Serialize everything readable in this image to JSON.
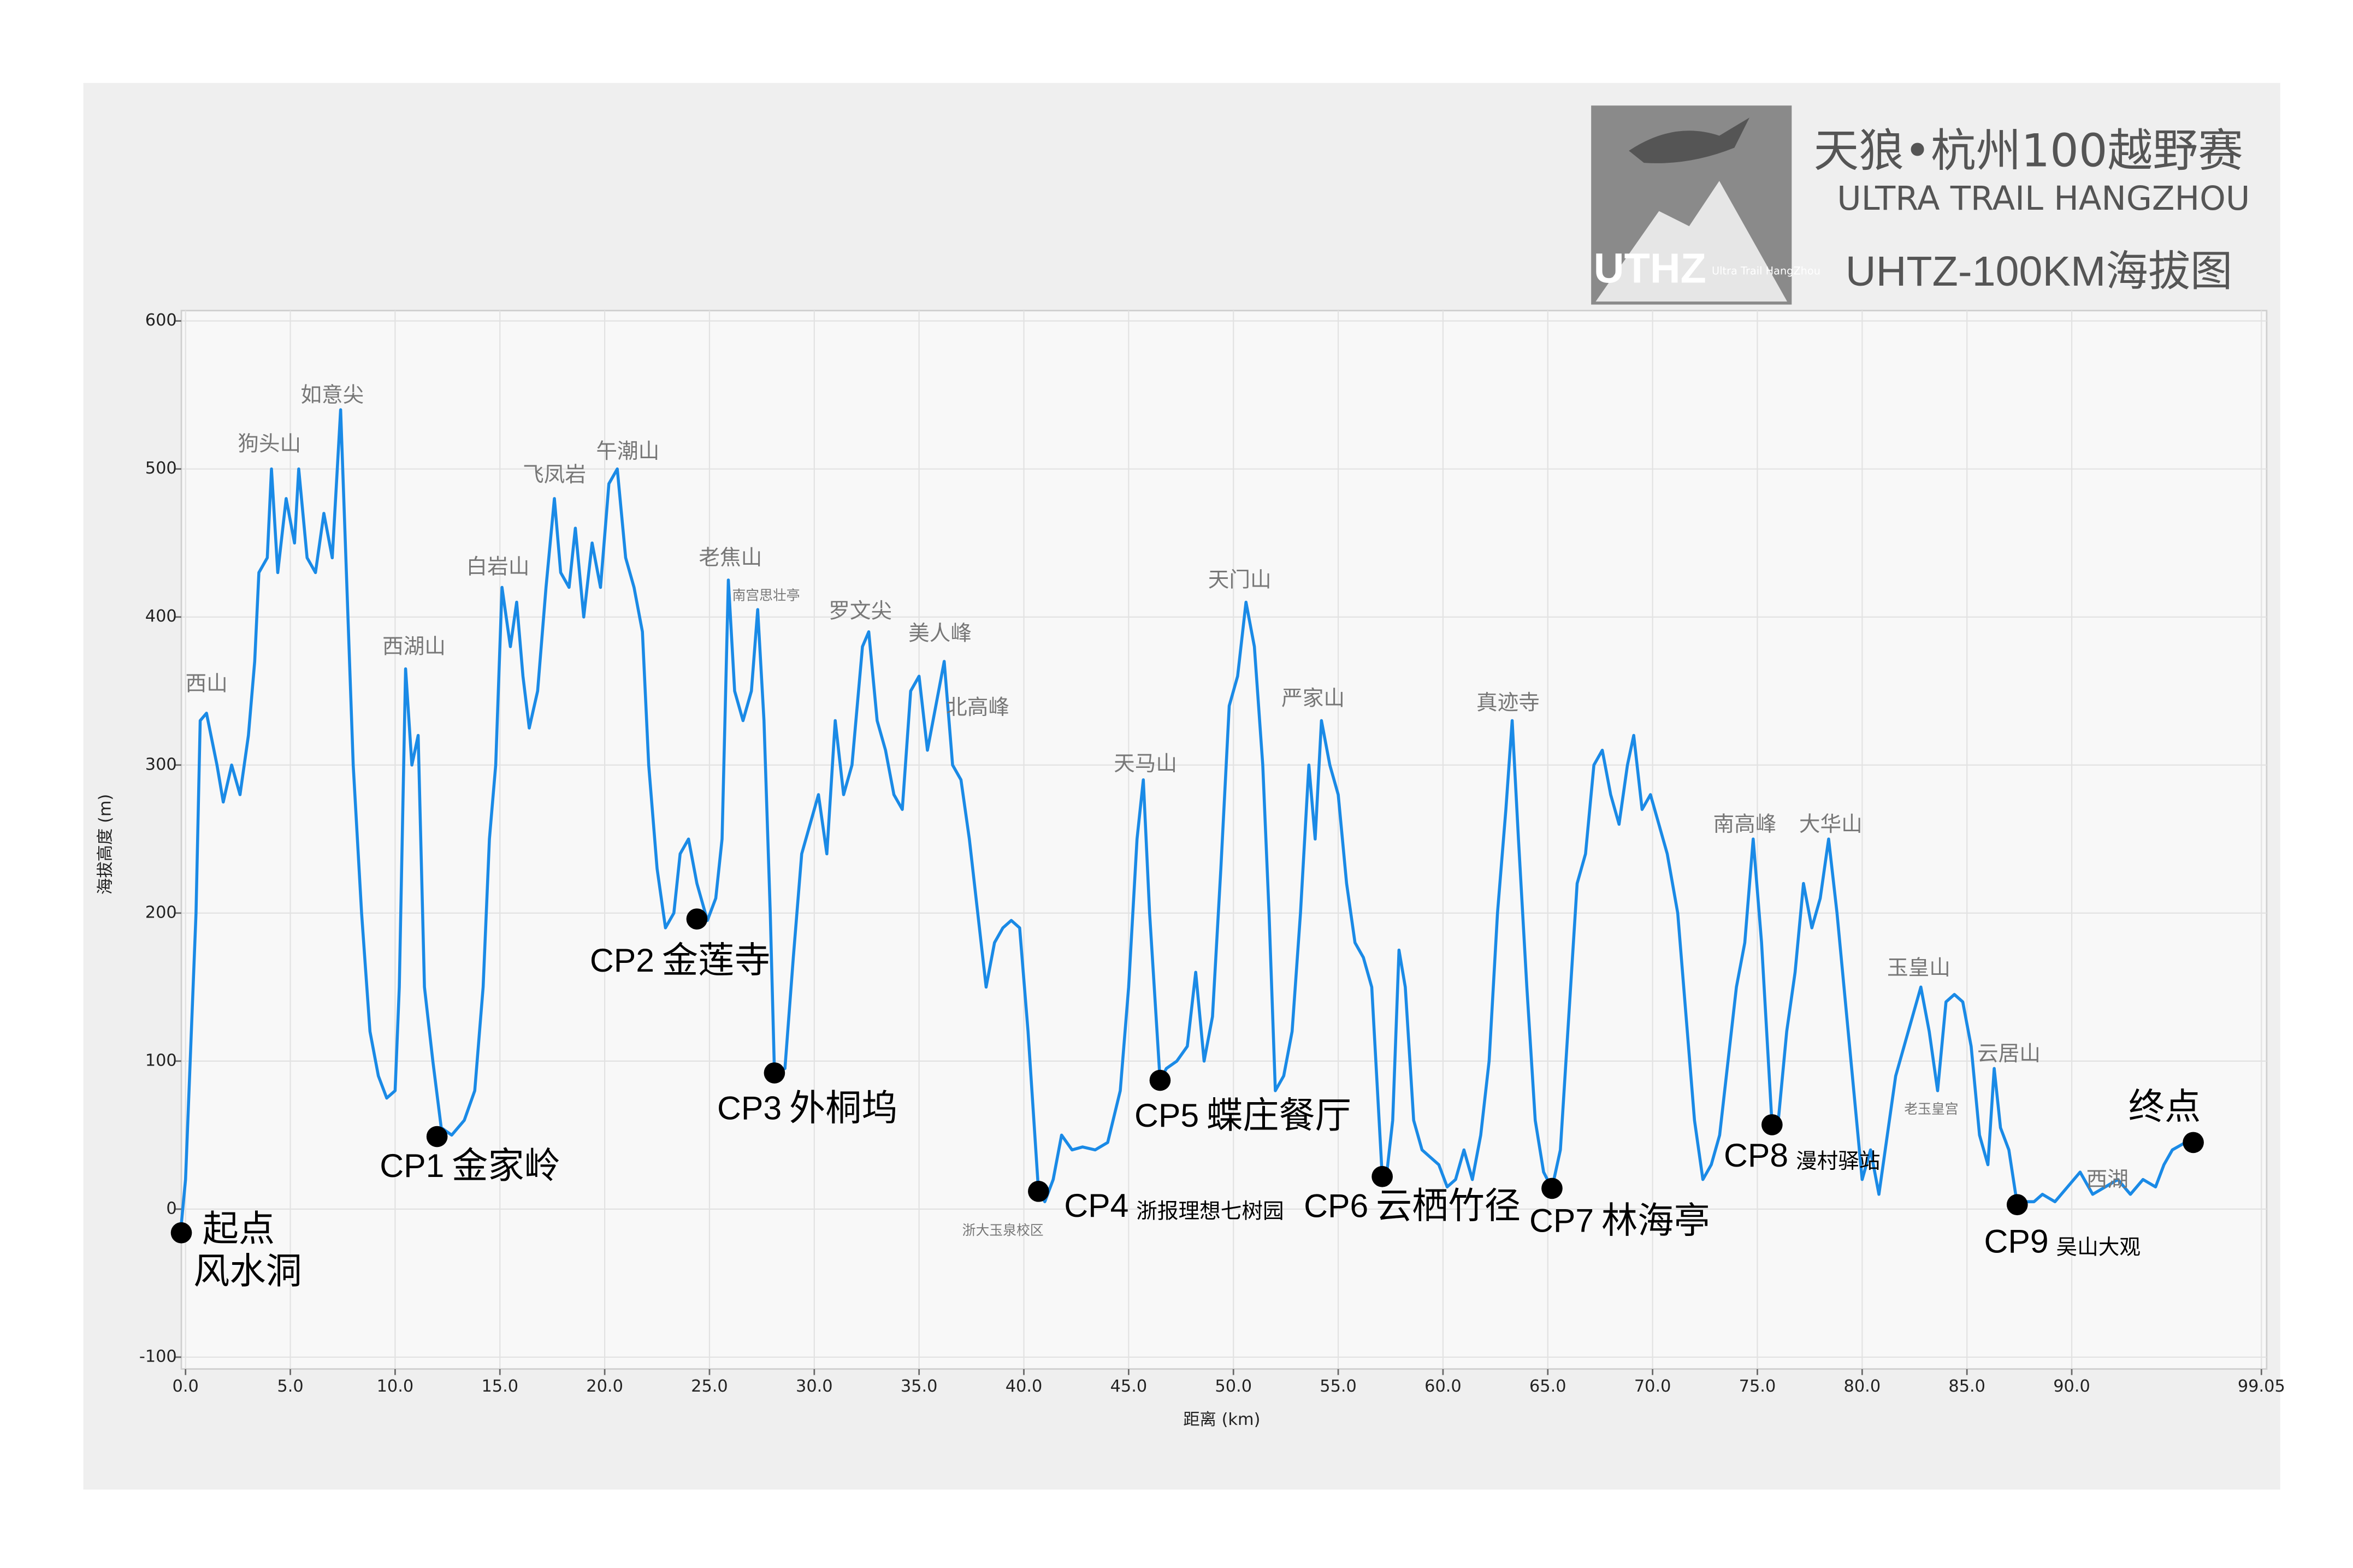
{
  "chart_data": {
    "type": "line",
    "title": "天狼•杭州100越野赛",
    "subtitle": "ULTRA TRAIL HANGZHOU",
    "chart_title": "UHTZ-100KM海拔图",
    "logo": {
      "text": "UTHZ",
      "tagline": "Ultra Trail HangZhou"
    },
    "x_label": "距离 (km)",
    "y_label": "海拔高度 (m)",
    "xlim": [
      -0.2,
      99.3
    ],
    "ylim": [
      -108,
      607
    ],
    "xticks": [
      {
        "value": 0,
        "label": "0.0"
      },
      {
        "value": 5,
        "label": "5.0"
      },
      {
        "value": 10,
        "label": "10.0"
      },
      {
        "value": 15,
        "label": "15.0"
      },
      {
        "value": 20,
        "label": "20.0"
      },
      {
        "value": 25,
        "label": "25.0"
      },
      {
        "value": 30,
        "label": "30.0"
      },
      {
        "value": 35,
        "label": "35.0"
      },
      {
        "value": 40,
        "label": "40.0"
      },
      {
        "value": 45,
        "label": "45.0"
      },
      {
        "value": 50,
        "label": "50.0"
      },
      {
        "value": 55,
        "label": "55.0"
      },
      {
        "value": 60,
        "label": "60.0"
      },
      {
        "value": 65,
        "label": "65.0"
      },
      {
        "value": 70,
        "label": "70.0"
      },
      {
        "value": 75,
        "label": "75.0"
      },
      {
        "value": 80,
        "label": "80.0"
      },
      {
        "value": 85,
        "label": "85.0"
      },
      {
        "value": 90,
        "label": "90.0"
      },
      {
        "value": 99.05,
        "label": "99.05"
      }
    ],
    "yticks": [
      -100,
      0,
      100,
      200,
      300,
      400,
      500,
      600
    ],
    "grid": true,
    "series": [
      {
        "color": "#1a8ae6",
        "x": [
          -0.2,
          0,
          0.5,
          0.7,
          1.0,
          1.5,
          1.8,
          2.2,
          2.6,
          3.0,
          3.3,
          3.5,
          3.9,
          4.1,
          4.4,
          4.8,
          5.2,
          5.4,
          5.8,
          6.2,
          6.6,
          7.0,
          7.4,
          7.7,
          8.0,
          8.4,
          8.8,
          9.2,
          9.6,
          10.0,
          10.2,
          10.5,
          10.8,
          11.1,
          11.4,
          11.8,
          12.2,
          12.7,
          13.3,
          13.8,
          14.2,
          14.5,
          14.8,
          15.1,
          15.5,
          15.8,
          16.1,
          16.4,
          16.8,
          17.2,
          17.6,
          17.9,
          18.3,
          18.6,
          19.0,
          19.4,
          19.8,
          20.2,
          20.6,
          21.0,
          21.4,
          21.8,
          22.1,
          22.5,
          22.9,
          23.3,
          23.6,
          24.0,
          24.4,
          24.9,
          25.3,
          25.6,
          25.9,
          26.2,
          26.6,
          27.0,
          27.3,
          27.6,
          27.9,
          28.1,
          28.6,
          29.0,
          29.4,
          29.8,
          30.2,
          30.6,
          31.0,
          31.4,
          31.8,
          32.3,
          32.6,
          33.0,
          33.4,
          33.8,
          34.2,
          34.6,
          35.0,
          35.4,
          35.8,
          36.2,
          36.6,
          37.0,
          37.4,
          37.8,
          38.2,
          38.6,
          39.0,
          39.4,
          39.8,
          40.2,
          40.7,
          41.0,
          41.4,
          41.8,
          42.3,
          42.8,
          43.4,
          44.0,
          44.6,
          45.0,
          45.4,
          45.7,
          46.0,
          46.5,
          46.8,
          47.3,
          47.8,
          48.2,
          48.6,
          49.0,
          49.4,
          49.8,
          50.2,
          50.6,
          51.0,
          51.4,
          51.7,
          52.0,
          52.4,
          52.8,
          53.2,
          53.6,
          53.9,
          54.2,
          54.6,
          55.0,
          55.4,
          55.8,
          56.2,
          56.6,
          57.1,
          57.3,
          57.6,
          57.9,
          58.2,
          58.6,
          59.0,
          59.4,
          59.8,
          60.2,
          60.6,
          61.0,
          61.4,
          61.8,
          62.2,
          62.6,
          63.0,
          63.3,
          63.6,
          64.0,
          64.4,
          64.8,
          65.2,
          65.6,
          66.0,
          66.4,
          66.8,
          67.2,
          67.6,
          68.0,
          68.4,
          68.8,
          69.1,
          69.5,
          69.9,
          70.3,
          70.7,
          71.2,
          71.6,
          72.0,
          72.4,
          72.8,
          73.2,
          73.6,
          74.0,
          74.4,
          74.8,
          75.2,
          75.7,
          76.0,
          76.4,
          76.8,
          77.2,
          77.6,
          78.0,
          78.4,
          78.8,
          79.2,
          79.6,
          80.0,
          80.4,
          80.8,
          81.2,
          81.6,
          82.0,
          82.4,
          82.8,
          83.2,
          83.6,
          84.0,
          84.4,
          84.8,
          85.2,
          85.6,
          86.0,
          86.3,
          86.6,
          87.0,
          87.4,
          87.8,
          88.2,
          88.6,
          89.2,
          89.8,
          90.4,
          91.0,
          91.6,
          92.2,
          92.8,
          93.4,
          94.0,
          94.4,
          94.8,
          95.3,
          95.8
        ],
        "values": [
          -10,
          20,
          200,
          330,
          335,
          300,
          275,
          300,
          280,
          320,
          370,
          430,
          440,
          500,
          430,
          480,
          450,
          500,
          440,
          430,
          470,
          440,
          540,
          420,
          300,
          200,
          120,
          90,
          75,
          80,
          150,
          365,
          300,
          320,
          150,
          100,
          55,
          50,
          60,
          80,
          150,
          250,
          300,
          420,
          380,
          410,
          360,
          325,
          350,
          420,
          480,
          430,
          420,
          460,
          400,
          450,
          420,
          490,
          500,
          440,
          420,
          390,
          300,
          230,
          190,
          200,
          240,
          250,
          220,
          195,
          210,
          250,
          425,
          350,
          330,
          350,
          405,
          330,
          200,
          92,
          95,
          170,
          240,
          260,
          280,
          240,
          330,
          280,
          300,
          380,
          390,
          330,
          310,
          280,
          270,
          350,
          360,
          310,
          340,
          370,
          300,
          290,
          250,
          200,
          150,
          180,
          190,
          195,
          190,
          120,
          12,
          5,
          20,
          50,
          40,
          42,
          40,
          45,
          80,
          150,
          250,
          290,
          200,
          87,
          95,
          100,
          110,
          160,
          100,
          130,
          230,
          340,
          360,
          410,
          380,
          300,
          200,
          80,
          90,
          120,
          200,
          300,
          250,
          330,
          300,
          280,
          220,
          180,
          170,
          150,
          22,
          22,
          60,
          175,
          150,
          60,
          40,
          35,
          30,
          15,
          20,
          40,
          20,
          50,
          100,
          200,
          270,
          330,
          250,
          150,
          60,
          25,
          14,
          40,
          130,
          220,
          240,
          300,
          310,
          280,
          260,
          300,
          320,
          270,
          280,
          260,
          240,
          200,
          130,
          60,
          20,
          30,
          50,
          100,
          150,
          180,
          250,
          180,
          57,
          60,
          120,
          160,
          220,
          190,
          210,
          250,
          200,
          140,
          80,
          20,
          40,
          10,
          50,
          90,
          110,
          130,
          150,
          120,
          80,
          140,
          145,
          140,
          110,
          50,
          30,
          95,
          55,
          40,
          3,
          5,
          5,
          10,
          5,
          15,
          25,
          10,
          15,
          20,
          10,
          20,
          15,
          30,
          40,
          44,
          45
        ]
      }
    ],
    "peaks": [
      {
        "text": "西山",
        "x": 1.0,
        "y": 354
      },
      {
        "text": "狗头山",
        "x": 4.0,
        "y": 516
      },
      {
        "text": "如意尖",
        "x": 7.0,
        "y": 549
      },
      {
        "text": "西湖山",
        "x": 10.9,
        "y": 379
      },
      {
        "text": "白岩山",
        "x": 14.9,
        "y": 433
      },
      {
        "text": "飞凤岩",
        "x": 17.6,
        "y": 495
      },
      {
        "text": "午潮山",
        "x": 21.1,
        "y": 511
      },
      {
        "text": "老焦山",
        "x": 26.0,
        "y": 439
      },
      {
        "text": "南宫思壮亭",
        "x": 27.7,
        "y": 414
      },
      {
        "text": "罗文尖",
        "x": 32.2,
        "y": 403
      },
      {
        "text": "美人峰",
        "x": 36.0,
        "y": 388
      },
      {
        "text": "北高峰",
        "x": 37.8,
        "y": 338
      },
      {
        "text": "天马山",
        "x": 45.8,
        "y": 300
      },
      {
        "text": "天门山",
        "x": 50.3,
        "y": 424
      },
      {
        "text": "严家山",
        "x": 53.8,
        "y": 344
      },
      {
        "text": "真迹寺",
        "x": 63.1,
        "y": 341
      },
      {
        "text": "南高峰",
        "x": 74.4,
        "y": 259
      },
      {
        "text": "大华山",
        "x": 78.5,
        "y": 259
      },
      {
        "text": "玉皇山",
        "x": 82.7,
        "y": 162
      },
      {
        "text": "云居山",
        "x": 87.0,
        "y": 104
      },
      {
        "text": "老玉皇宫",
        "x": 83.3,
        "y": 67
      },
      {
        "text": "西湖",
        "x": 91.7,
        "y": 19
      },
      {
        "text": "浙大玉泉校区",
        "x": 39.0,
        "y": -15
      }
    ],
    "checkpoints": [
      {
        "code": "起点",
        "place": "风水洞",
        "x": -0.2,
        "y": -16
      },
      {
        "code": "CP1",
        "place": "金家岭",
        "x": 12.0,
        "y": 49
      },
      {
        "code": "CP2",
        "place": "金莲寺",
        "x": 24.4,
        "y": 196
      },
      {
        "code": "CP3",
        "place": "外桐坞",
        "x": 28.1,
        "y": 92
      },
      {
        "code": "CP4",
        "place": "浙报理想七树园",
        "x": 40.7,
        "y": 12
      },
      {
        "code": "CP5",
        "place": "蝶庄餐厅",
        "x": 46.5,
        "y": 87
      },
      {
        "code": "CP6",
        "place": "云栖竹径",
        "x": 57.1,
        "y": 22
      },
      {
        "code": "CP7",
        "place": "林海亭",
        "x": 65.2,
        "y": 14
      },
      {
        "code": "CP8",
        "place": "漫村驿站",
        "x": 75.7,
        "y": 57
      },
      {
        "code": "CP9",
        "place": "吴山大观",
        "x": 87.4,
        "y": 3
      },
      {
        "code": "终点",
        "x": 95.8,
        "y": 45
      }
    ]
  }
}
